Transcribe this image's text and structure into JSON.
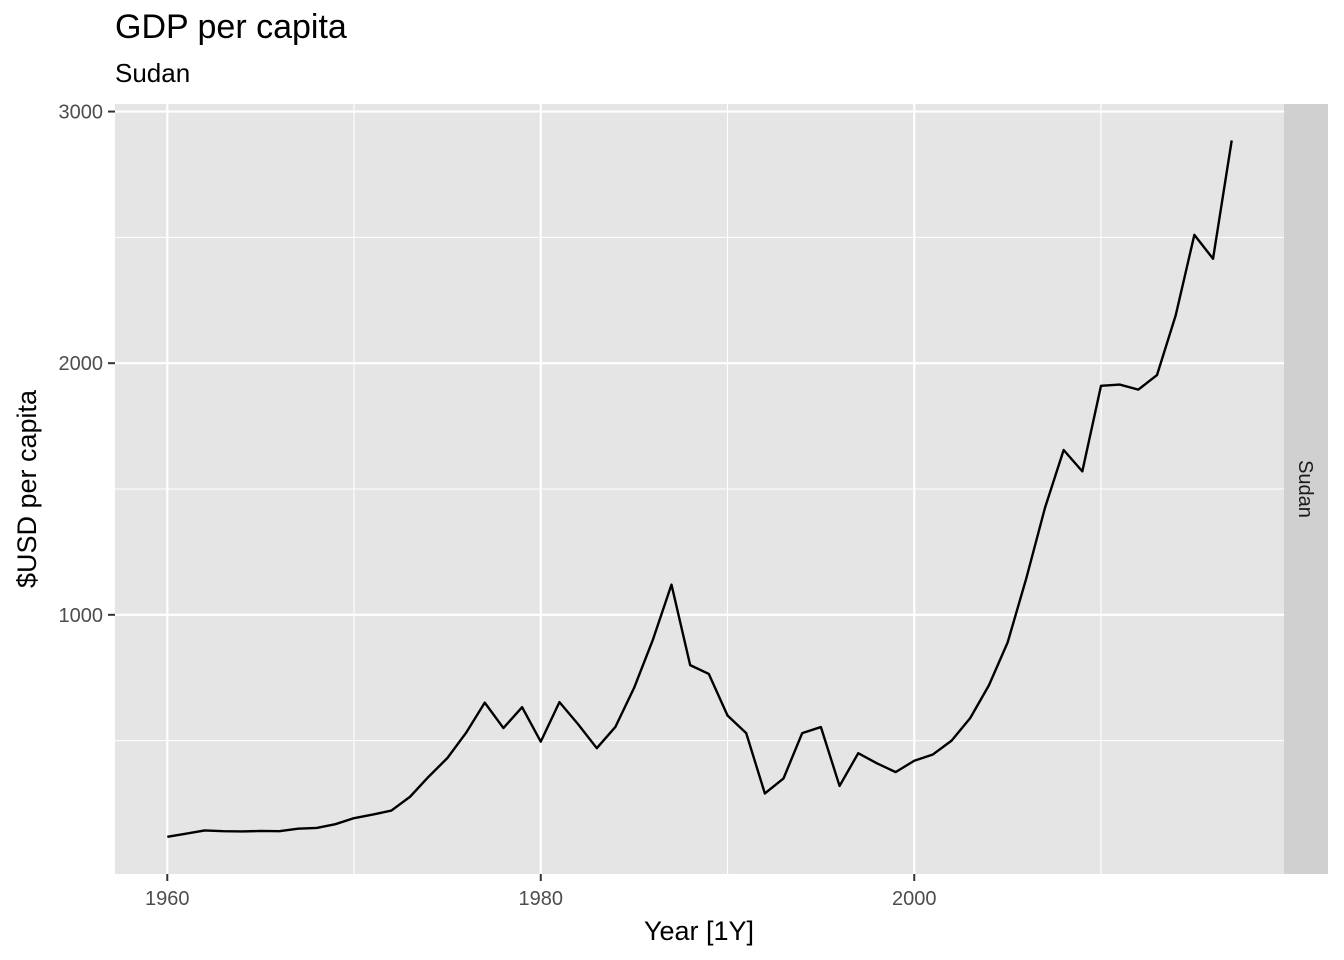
{
  "chart_data": {
    "type": "line",
    "title": "GDP per capita",
    "subtitle": "Sudan",
    "xlabel": "Year [1Y]",
    "ylabel": "$USD per capita",
    "facet_label": "Sudan",
    "xlim": [
      1957.2,
      2019.8
    ],
    "ylim": [
      -30,
      3030
    ],
    "x_ticks": [
      1960,
      1980,
      2000
    ],
    "y_ticks": [
      1000,
      2000,
      3000
    ],
    "grid": true,
    "line_color": "#000000",
    "panel_color": "#e5e5e5",
    "strip_color": "#d0d0d0",
    "series": [
      {
        "x": [
          1960,
          1961,
          1962,
          1963,
          1964,
          1965,
          1966,
          1967,
          1968,
          1969,
          1970,
          1971,
          1972,
          1973,
          1974,
          1975,
          1976,
          1977,
          1978,
          1979,
          1980,
          1981,
          1982,
          1983,
          1984,
          1985,
          1986,
          1987,
          1988,
          1989,
          1990,
          1991,
          1992,
          1993,
          1994,
          1995,
          1996,
          1997,
          1998,
          1999,
          2000,
          2001,
          2002,
          2003,
          2004,
          2005,
          2006,
          2007,
          2008,
          2009,
          2010,
          2011,
          2012,
          2013,
          2014,
          2015,
          2016,
          2017
        ],
        "y": [
          118,
          130,
          143,
          140,
          139,
          141,
          140,
          150,
          153,
          168,
          192,
          206,
          222,
          277,
          357,
          431,
          531,
          651,
          550,
          633,
          496,
          653,
          565,
          470,
          555,
          710,
          900,
          1120,
          800,
          765,
          600,
          530,
          290,
          350,
          530,
          554,
          320,
          450,
          410,
          375,
          420,
          445,
          500,
          590,
          720,
          890,
          1145,
          1425,
          1655,
          1570,
          1910,
          1915,
          1895,
          1953,
          2190,
          2510,
          2415,
          2885
        ]
      }
    ]
  }
}
